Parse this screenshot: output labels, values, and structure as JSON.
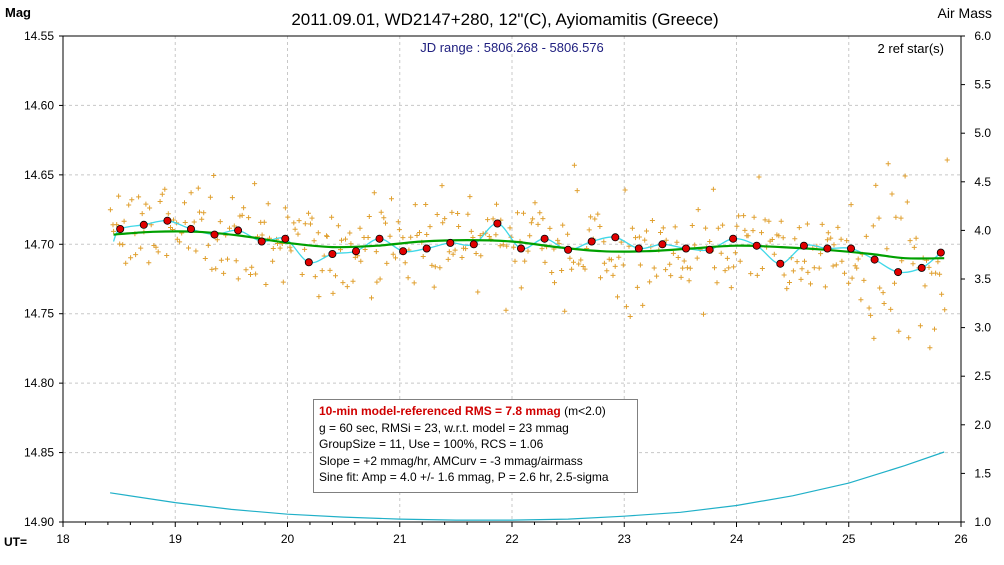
{
  "colors": {
    "observations": "#e0a030",
    "group_means": "#e00000",
    "model": "#00a000",
    "sine_fit": "#40d8e8",
    "airmass": "#20b0c8",
    "jd_text": "#202080",
    "rms_text": "#d00000"
  },
  "chart_data": {
    "type": "scatter",
    "title": "2011.09.01, WD2147+280, 12\"(C), Ayiomamitis (Greece)",
    "left_axis_label": "Mag",
    "right_axis_label": "Air Mass",
    "x_axis_label": "UT=",
    "jd_range": "JD range : 5806.268 - 5806.576",
    "ref_stars": "2 ref star(s)",
    "xlim": [
      18,
      26
    ],
    "ylim_mag": [
      14.9,
      14.55
    ],
    "ylim_airmass": [
      1.0,
      6.0
    ],
    "x_ticks": [
      "18",
      "19",
      "20",
      "21",
      "22",
      "23",
      "24",
      "25",
      "26"
    ],
    "y_ticks_mag": [
      "14.55",
      "14.60",
      "14.65",
      "14.70",
      "14.75",
      "14.80",
      "14.85",
      "14.90"
    ],
    "y_ticks_airmass": [
      "6.0",
      "5.5",
      "5.0",
      "4.5",
      "4.0",
      "3.5",
      "3.0",
      "2.5",
      "2.0",
      "1.5",
      "1.0"
    ],
    "grid": true,
    "group_means": {
      "x": [
        18.51,
        18.72,
        18.93,
        19.14,
        19.35,
        19.56,
        19.77,
        19.98,
        20.19,
        20.4,
        20.61,
        20.82,
        21.03,
        21.24,
        21.45,
        21.66,
        21.87,
        22.08,
        22.29,
        22.5,
        22.71,
        22.92,
        23.13,
        23.34,
        23.55,
        23.76,
        23.97,
        24.18,
        24.39,
        24.6,
        24.81,
        25.02,
        25.23,
        25.44,
        25.65,
        25.82
      ],
      "y": [
        14.689,
        14.686,
        14.683,
        14.689,
        14.693,
        14.69,
        14.698,
        14.696,
        14.713,
        14.707,
        14.705,
        14.696,
        14.705,
        14.703,
        14.699,
        14.7,
        14.685,
        14.703,
        14.696,
        14.704,
        14.698,
        14.695,
        14.703,
        14.7,
        14.703,
        14.704,
        14.696,
        14.701,
        14.714,
        14.701,
        14.703,
        14.703,
        14.711,
        14.72,
        14.717,
        14.706
      ]
    },
    "model_curve": {
      "x": [
        18.45,
        18.8,
        19.2,
        19.6,
        20.0,
        20.4,
        20.8,
        21.2,
        21.6,
        22.0,
        22.4,
        22.8,
        23.2,
        23.6,
        24.0,
        24.4,
        24.8,
        25.2,
        25.5,
        25.85
      ],
      "y": [
        14.693,
        14.691,
        14.691,
        14.694,
        14.699,
        14.702,
        14.701,
        14.698,
        14.697,
        14.698,
        14.702,
        14.705,
        14.705,
        14.703,
        14.701,
        14.702,
        14.704,
        14.707,
        14.71,
        14.71
      ]
    },
    "sine_fit": {
      "amp_mag": 0.004,
      "period_hr": 2.6,
      "note": "Sine fit: Amp = 4.0 +/- 1.6 mmag, P = 2.6 hr, 2.5-sigma"
    },
    "airmass_curve": {
      "x": [
        18.42,
        19.0,
        19.5,
        20.0,
        20.5,
        21.0,
        21.5,
        22.0,
        22.5,
        23.0,
        23.5,
        24.0,
        24.5,
        25.0,
        25.5,
        25.85
      ],
      "y": [
        1.3,
        1.2,
        1.13,
        1.08,
        1.05,
        1.03,
        1.02,
        1.02,
        1.03,
        1.06,
        1.1,
        1.17,
        1.27,
        1.4,
        1.58,
        1.72
      ]
    },
    "observations": {
      "x_start": 18.42,
      "x_end": 25.87,
      "count": 420,
      "scatter_mmag": 23
    },
    "stats": {
      "rms_line": "10-min model-referenced RMS = 7.8 mmag",
      "rms_suffix": "(m<2.0)",
      "line2": "g = 60 sec, RMSi = 23, w.r.t. model = 23 mmag",
      "line3": "GroupSize = 11, Use = 100%, RCS = 1.06",
      "line4": "Slope = +2 mmag/hr, AMCurv = -3 mmag/airmass",
      "line5": "Sine fit: Amp = 4.0 +/- 1.6 mmag, P = 2.6 hr, 2.5-sigma"
    }
  }
}
